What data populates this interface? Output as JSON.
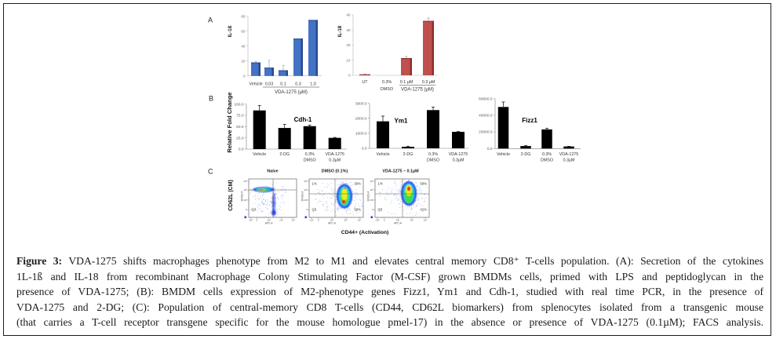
{
  "figure": {
    "panel_labels": {
      "a": "A",
      "b": "B",
      "c": "C"
    },
    "panel_b": {
      "ylabel": "Relative Fold Change"
    },
    "panel_c": {
      "ylabel": "CD62L (CM)",
      "xlabel": "CD44+ (Activation)",
      "x_channel": "APC-A",
      "y_channel": "BV421-A",
      "x_ticks": [
        "-10³",
        "0",
        "10³",
        "10⁴",
        "10⁵"
      ],
      "y_ticks": [
        "10⁵",
        "10⁴",
        "10³",
        "0"
      ],
      "plots": [
        {
          "title": "Naive",
          "quadrants": {
            "bottom_left": "Q3"
          }
        },
        {
          "title": "DMSO (0.1%)",
          "quadrants": {
            "top_left": "1%",
            "top_right": "39%",
            "bottom_left": "Q3",
            "bottom_right": "58%"
          }
        },
        {
          "title": "VDA-1275 – 0.1µM",
          "quadrants": {
            "top_left": "1%",
            "top_right": "58%",
            "bottom_left": "Q3",
            "bottom_right": "41%"
          }
        }
      ]
    }
  },
  "chart_data": [
    {
      "type": "bar",
      "title": "",
      "ylabel": "IL-1ß",
      "xlabel": "",
      "categories": [
        [
          "Vehicle"
        ],
        [
          "0.03"
        ],
        [
          "0.1"
        ],
        [
          "0.3"
        ],
        [
          "1.0"
        ]
      ],
      "group": {
        "label": "VDA-1275 (µM)",
        "from": 1,
        "to": 4
      },
      "values": [
        18,
        11,
        7.5,
        50,
        75
      ],
      "error_upper": [
        19.5,
        21,
        14,
        null,
        null
      ],
      "ylim": [
        0,
        80
      ],
      "yticks": [
        0,
        20,
        40,
        60,
        80
      ],
      "ytick_labels": [
        "0",
        "20",
        "40",
        "60",
        "80"
      ],
      "color": "#4472c4"
    },
    {
      "type": "bar",
      "title": "",
      "ylabel": "IL-18",
      "xlabel": "",
      "categories": [
        [
          "UT"
        ],
        [
          "0.3%",
          "DMSO"
        ],
        [
          "0.1 µM"
        ],
        [
          "0.3 µM"
        ]
      ],
      "group": {
        "label": "VDA-1275 (µM)",
        "from": 2,
        "to": 3
      },
      "values": [
        0.6,
        0,
        11.4,
        36
      ],
      "error_upper": [
        1.0,
        null,
        12.5,
        38
      ],
      "ylim": [
        0,
        40
      ],
      "yticks": [
        0,
        10,
        20,
        30,
        40
      ],
      "ytick_labels": [
        "0",
        "10",
        "20",
        "30",
        "40"
      ],
      "color": "#c0504d"
    },
    {
      "type": "bar",
      "title": "Cdh-1",
      "ylabel": "Relative Fold Change",
      "xlabel": "",
      "categories": [
        [
          "Vehicle"
        ],
        [
          "2-DG"
        ],
        [
          "0.3%",
          "DMSO"
        ],
        [
          "VDA-1275",
          "0.3µM"
        ]
      ],
      "values": [
        86,
        47,
        51,
        25
      ],
      "error_upper": [
        97,
        55,
        53.5,
        26
      ],
      "ylim": [
        0,
        100
      ],
      "yticks": [
        0,
        25,
        50,
        75,
        100
      ],
      "ytick_labels": [
        "0.0",
        "25.0",
        "50.0",
        "75.0",
        "100.0"
      ],
      "color": "#000000"
    },
    {
      "type": "bar",
      "title": "Ym1",
      "ylabel": "Relative Fold Change",
      "xlabel": "",
      "categories": [
        [
          "Vehicle"
        ],
        [
          "2-DG"
        ],
        [
          "0.3%",
          "DMSO"
        ],
        [
          "VDA-1275",
          "0.3µM"
        ]
      ],
      "values": [
        1800,
        100,
        2550,
        1100
      ],
      "error_upper": [
        2150,
        130,
        2750,
        1120
      ],
      "ylim": [
        0,
        3000
      ],
      "yticks": [
        0,
        1000,
        2000,
        3000
      ],
      "ytick_labels": [
        "0.0",
        "1000.0",
        "2000.0",
        "3000.0"
      ],
      "color": "#000000"
    },
    {
      "type": "bar",
      "title": "Fizz1",
      "ylabel": "Relative Fold Change",
      "xlabel": "",
      "categories": [
        [
          "Vehicle"
        ],
        [
          "2-DG"
        ],
        [
          "0.3%",
          "DMSO"
        ],
        [
          "VDA-1275",
          "0.3µM"
        ]
      ],
      "values": [
        50000,
        3000,
        23000,
        2500
      ],
      "error_upper": [
        56000,
        3500,
        24500,
        2700
      ],
      "ylim": [
        0,
        60000
      ],
      "yticks": [
        0,
        20000,
        40000,
        60000
      ],
      "ytick_labels": [
        "0.0",
        "20000.0",
        "40000.0",
        "60000.0"
      ],
      "color": "#000000"
    }
  ],
  "caption": {
    "label": "Figure 3:",
    "lines": [
      "VDA-1275 shifts macrophages phenotype from M2 to M1 and elevates central memory CD8⁺ T-cells population. (A): Secretion of the cytokines",
      "1L-1ß and IL-18 from recombinant Macrophage Colony Stimulating Factor (M-CSF) grown BMDMs cells, primed with LPS and peptidoglycan in the",
      "presence of VDA-1275; (B): BMDM cells expression of M2-phenotype genes Fizz1, Ym1 and Cdh-1, studied with real time PCR, in the presence of",
      "VDA-1275 and 2-DG; (C): Population of central-memory CD8 T-cells (CD44, CD62L biomarkers) from splenocytes isolated from a transgenic mouse",
      "(that carries a T-cell receptor transgene specific for the mouse homologue pmel-17) in the absence or presence of VDA-1275 (0.1µM); FACS analysis."
    ]
  }
}
